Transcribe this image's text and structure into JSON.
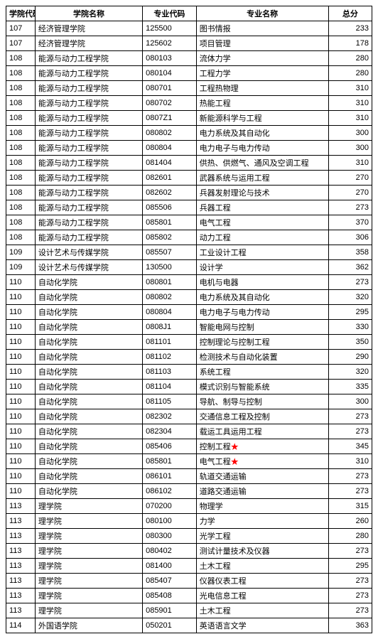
{
  "headers": [
    "学院代码",
    "学院名称",
    "专业代码",
    "专业名称",
    "总分"
  ],
  "starColor": "#ff0000",
  "rows": [
    {
      "col1": "107",
      "col2": "经济管理学院",
      "col3": "125500",
      "col4": "图书情报",
      "col5": "233",
      "star": false
    },
    {
      "col1": "107",
      "col2": "经济管理学院",
      "col3": "125602",
      "col4": "项目管理",
      "col5": "178",
      "star": false
    },
    {
      "col1": "108",
      "col2": "能源与动力工程学院",
      "col3": "080103",
      "col4": "流体力学",
      "col5": "280",
      "star": false
    },
    {
      "col1": "108",
      "col2": "能源与动力工程学院",
      "col3": "080104",
      "col4": "工程力学",
      "col5": "280",
      "star": false
    },
    {
      "col1": "108",
      "col2": "能源与动力工程学院",
      "col3": "080701",
      "col4": "工程热物理",
      "col5": "310",
      "star": false
    },
    {
      "col1": "108",
      "col2": "能源与动力工程学院",
      "col3": "080702",
      "col4": "热能工程",
      "col5": "310",
      "star": false
    },
    {
      "col1": "108",
      "col2": "能源与动力工程学院",
      "col3": "0807Z1",
      "col4": "新能源科学与工程",
      "col5": "310",
      "star": false
    },
    {
      "col1": "108",
      "col2": "能源与动力工程学院",
      "col3": "080802",
      "col4": "电力系统及其自动化",
      "col5": "300",
      "star": false
    },
    {
      "col1": "108",
      "col2": "能源与动力工程学院",
      "col3": "080804",
      "col4": "电力电子与电力传动",
      "col5": "300",
      "star": false
    },
    {
      "col1": "108",
      "col2": "能源与动力工程学院",
      "col3": "081404",
      "col4": "供热、供燃气、通风及空调工程",
      "col5": "310",
      "star": false
    },
    {
      "col1": "108",
      "col2": "能源与动力工程学院",
      "col3": "082601",
      "col4": "武器系统与运用工程",
      "col5": "270",
      "star": false
    },
    {
      "col1": "108",
      "col2": "能源与动力工程学院",
      "col3": "082602",
      "col4": "兵器发射理论与技术",
      "col5": "270",
      "star": false
    },
    {
      "col1": "108",
      "col2": "能源与动力工程学院",
      "col3": "085506",
      "col4": "兵器工程",
      "col5": "273",
      "star": false
    },
    {
      "col1": "108",
      "col2": "能源与动力工程学院",
      "col3": "085801",
      "col4": "电气工程",
      "col5": "370",
      "star": false
    },
    {
      "col1": "108",
      "col2": "能源与动力工程学院",
      "col3": "085802",
      "col4": "动力工程",
      "col5": "306",
      "star": false
    },
    {
      "col1": "109",
      "col2": "设计艺术与传媒学院",
      "col3": "085507",
      "col4": "工业设计工程",
      "col5": "358",
      "star": false
    },
    {
      "col1": "109",
      "col2": "设计艺术与传媒学院",
      "col3": "130500",
      "col4": "设计学",
      "col5": "362",
      "star": false
    },
    {
      "col1": "110",
      "col2": "自动化学院",
      "col3": "080801",
      "col4": "电机与电器",
      "col5": "273",
      "star": false
    },
    {
      "col1": "110",
      "col2": "自动化学院",
      "col3": "080802",
      "col4": "电力系统及其自动化",
      "col5": "320",
      "star": false
    },
    {
      "col1": "110",
      "col2": "自动化学院",
      "col3": "080804",
      "col4": "电力电子与电力传动",
      "col5": "295",
      "star": false
    },
    {
      "col1": "110",
      "col2": "自动化学院",
      "col3": "0808J1",
      "col4": "智能电网与控制",
      "col5": "330",
      "star": false
    },
    {
      "col1": "110",
      "col2": "自动化学院",
      "col3": "081101",
      "col4": "控制理论与控制工程",
      "col5": "350",
      "star": false
    },
    {
      "col1": "110",
      "col2": "自动化学院",
      "col3": "081102",
      "col4": "检测技术与自动化装置",
      "col5": "290",
      "star": false
    },
    {
      "col1": "110",
      "col2": "自动化学院",
      "col3": "081103",
      "col4": "系统工程",
      "col5": "320",
      "star": false
    },
    {
      "col1": "110",
      "col2": "自动化学院",
      "col3": "081104",
      "col4": "模式识别与智能系统",
      "col5": "335",
      "star": false
    },
    {
      "col1": "110",
      "col2": "自动化学院",
      "col3": "081105",
      "col4": "导航、制导与控制",
      "col5": "300",
      "star": false
    },
    {
      "col1": "110",
      "col2": "自动化学院",
      "col3": "082302",
      "col4": "交通信息工程及控制",
      "col5": "273",
      "star": false
    },
    {
      "col1": "110",
      "col2": "自动化学院",
      "col3": "082304",
      "col4": "载运工具运用工程",
      "col5": "273",
      "star": false
    },
    {
      "col1": "110",
      "col2": "自动化学院",
      "col3": "085406",
      "col4": "控制工程",
      "col5": "345",
      "star": true
    },
    {
      "col1": "110",
      "col2": "自动化学院",
      "col3": "085801",
      "col4": "电气工程",
      "col5": "310",
      "star": true
    },
    {
      "col1": "110",
      "col2": "自动化学院",
      "col3": "086101",
      "col4": "轨道交通运输",
      "col5": "273",
      "star": false
    },
    {
      "col1": "110",
      "col2": "自动化学院",
      "col3": "086102",
      "col4": "道路交通运输",
      "col5": "273",
      "star": false
    },
    {
      "col1": "113",
      "col2": "理学院",
      "col3": "070200",
      "col4": "物理学",
      "col5": "315",
      "star": false
    },
    {
      "col1": "113",
      "col2": "理学院",
      "col3": "080100",
      "col4": "力学",
      "col5": "260",
      "star": false
    },
    {
      "col1": "113",
      "col2": "理学院",
      "col3": "080300",
      "col4": "光学工程",
      "col5": "280",
      "star": false
    },
    {
      "col1": "113",
      "col2": "理学院",
      "col3": "080402",
      "col4": "测试计量技术及仪器",
      "col5": "273",
      "star": false
    },
    {
      "col1": "113",
      "col2": "理学院",
      "col3": "081400",
      "col4": "土木工程",
      "col5": "295",
      "star": false
    },
    {
      "col1": "113",
      "col2": "理学院",
      "col3": "085407",
      "col4": "仪器仪表工程",
      "col5": "273",
      "star": false
    },
    {
      "col1": "113",
      "col2": "理学院",
      "col3": "085408",
      "col4": "光电信息工程",
      "col5": "273",
      "star": false
    },
    {
      "col1": "113",
      "col2": "理学院",
      "col3": "085901",
      "col4": "土木工程",
      "col5": "273",
      "star": false
    },
    {
      "col1": "114",
      "col2": "外国语学院",
      "col3": "050201",
      "col4": "英语语言文学",
      "col5": "363",
      "star": false
    }
  ]
}
